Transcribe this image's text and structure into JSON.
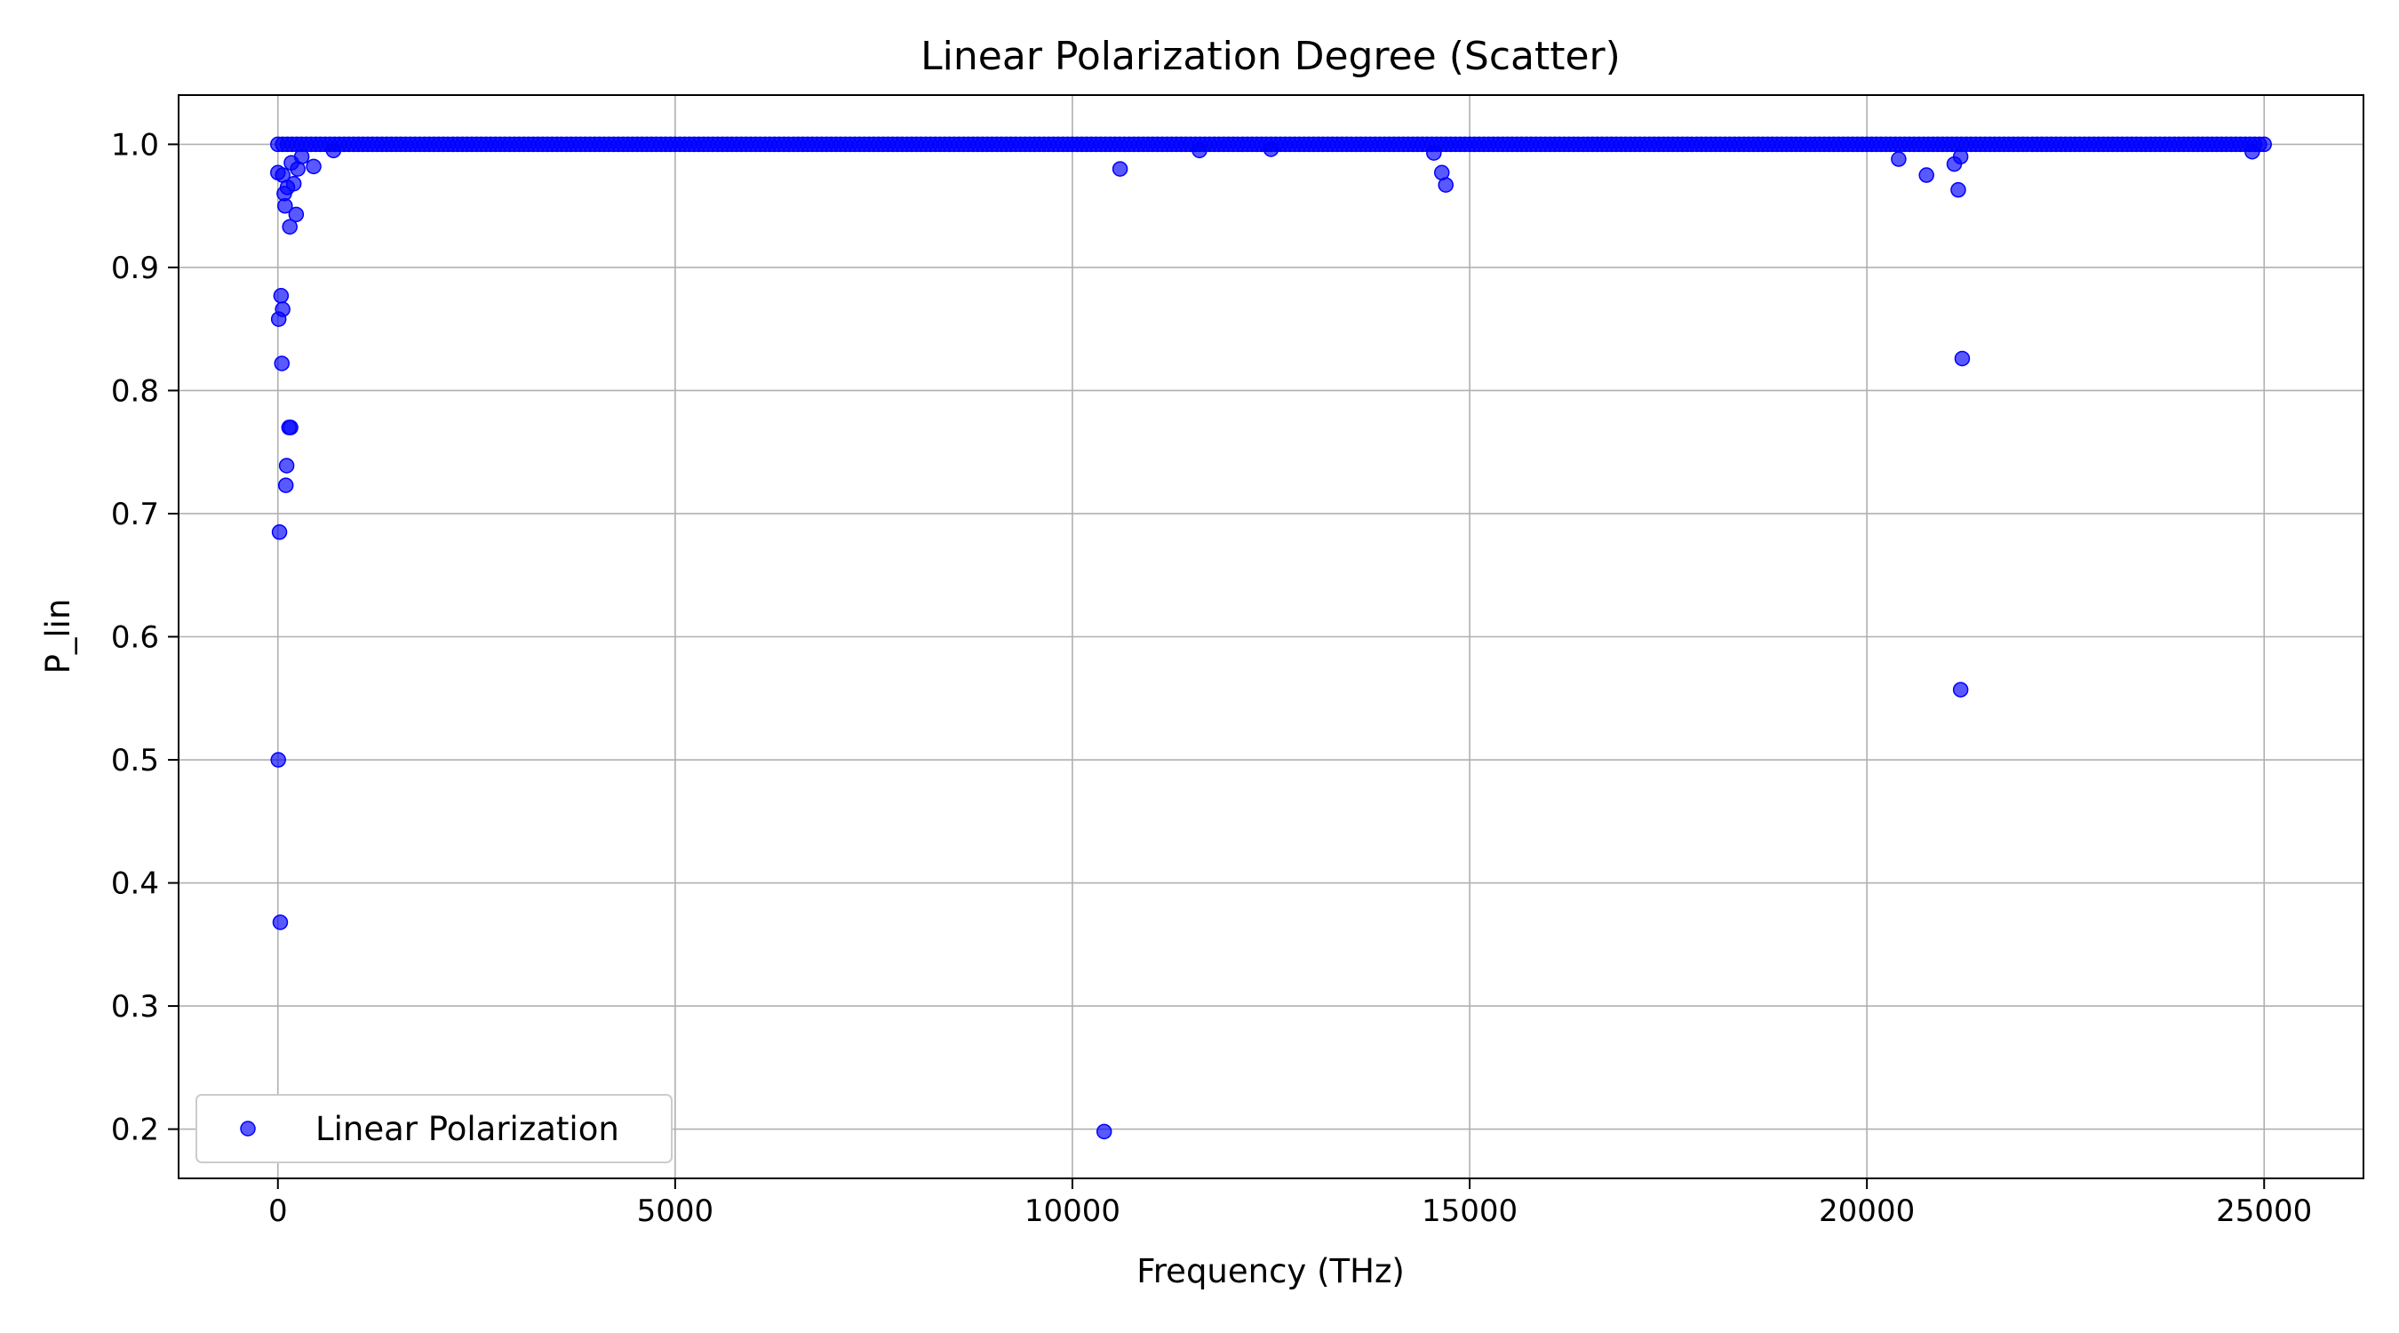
{
  "chart_data": {
    "type": "scatter",
    "title": "Linear Polarization Degree (Scatter)",
    "xlabel": "Frequency (THz)",
    "ylabel": "P_lin",
    "xlim": [
      -1250,
      26250
    ],
    "ylim": [
      0.16,
      1.04
    ],
    "xticks": [
      0,
      5000,
      10000,
      15000,
      20000,
      25000
    ],
    "yticks": [
      0.2,
      0.3,
      0.4,
      0.5,
      0.6,
      0.7,
      0.8,
      0.9,
      1.0
    ],
    "grid": true,
    "legend_position": "lower-left",
    "series": [
      {
        "name": "Linear Polarization",
        "color": "#0000ff",
        "points": [
          [
            5,
            0.5
          ],
          [
            30,
            0.368
          ],
          [
            20,
            0.685
          ],
          [
            100,
            0.723
          ],
          [
            110,
            0.739
          ],
          [
            140,
            0.77
          ],
          [
            160,
            0.77
          ],
          [
            50,
            0.822
          ],
          [
            60,
            0.866
          ],
          [
            40,
            0.877
          ],
          [
            10,
            0.858
          ],
          [
            150,
            0.933
          ],
          [
            230,
            0.943
          ],
          [
            80,
            0.96
          ],
          [
            120,
            0.965
          ],
          [
            200,
            0.968
          ],
          [
            90,
            0.95
          ],
          [
            60,
            0.975
          ],
          [
            0,
            0.977
          ],
          [
            250,
            0.98
          ],
          [
            450,
            0.982
          ],
          [
            300,
            0.99
          ],
          [
            700,
            0.995
          ],
          [
            170,
            0.985
          ],
          [
            10400,
            0.198
          ],
          [
            10600,
            0.98
          ],
          [
            11600,
            0.995
          ],
          [
            12500,
            0.996
          ],
          [
            14700,
            0.967
          ],
          [
            14650,
            0.977
          ],
          [
            14550,
            0.993
          ],
          [
            20400,
            0.988
          ],
          [
            20750,
            0.975
          ],
          [
            21100,
            0.984
          ],
          [
            21150,
            0.963
          ],
          [
            21200,
            0.826
          ],
          [
            21180,
            0.557
          ],
          [
            21180,
            0.99
          ],
          [
            24850,
            0.994
          ]
        ],
        "baseline": {
          "x_range": [
            0,
            25000
          ],
          "y": 1.0
        }
      }
    ]
  }
}
